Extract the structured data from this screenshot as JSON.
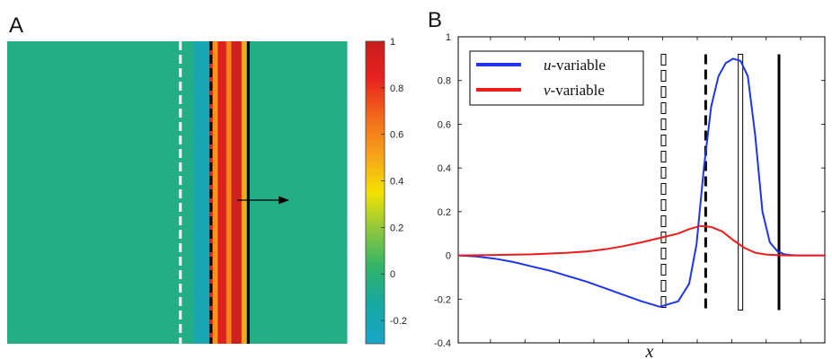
{
  "chart_data": [
    {
      "panel_label": "A",
      "type": "heatmap",
      "background_value": -0.05,
      "colorbar": {
        "range": [
          -0.3,
          1
        ],
        "ticks": [
          -0.2,
          0,
          0.2,
          0.4,
          0.6,
          0.8,
          1
        ],
        "tick_labels": [
          "-0.2",
          "0",
          "0.2",
          "0.4",
          "0.6",
          "0.8",
          "1"
        ],
        "colors": [
          "#1aa4c8",
          "#17a8a4",
          "#2fb36a",
          "#8cc63f",
          "#f2e200",
          "#f7a21a",
          "#f26a1b",
          "#e8231f",
          "#c81e1e"
        ]
      },
      "bands": [
        {
          "from": 0.0,
          "to": 0.55,
          "value": -0.05
        },
        {
          "from": 0.55,
          "to": 0.595,
          "value": -0.2
        },
        {
          "from": 0.595,
          "to": 0.605,
          "value": 0.9
        },
        {
          "from": 0.605,
          "to": 0.62,
          "value": 0.55
        },
        {
          "from": 0.62,
          "to": 0.645,
          "value": 0.9
        },
        {
          "from": 0.645,
          "to": 0.66,
          "value": 0.6
        },
        {
          "from": 0.66,
          "to": 0.69,
          "value": 0.95
        },
        {
          "from": 0.69,
          "to": 0.705,
          "value": 0.5
        },
        {
          "from": 0.705,
          "to": 0.72,
          "value": -0.05
        },
        {
          "from": 0.72,
          "to": 1.0,
          "value": -0.05
        }
      ],
      "markers": [
        {
          "position": 0.51,
          "style": "white-dashed"
        },
        {
          "position": 0.6,
          "style": "black-dashed"
        },
        {
          "position": 0.71,
          "style": "black-solid"
        }
      ],
      "arrow": {
        "direction": "right"
      }
    },
    {
      "panel_label": "B",
      "type": "line",
      "xlabel": "x",
      "ylabel": "",
      "xlim": [
        0,
        10
      ],
      "ylim": [
        -0.4,
        1
      ],
      "yticks": [
        -0.4,
        -0.2,
        0,
        0.2,
        0.4,
        0.6,
        0.8,
        1
      ],
      "ytick_labels": [
        "-0.4",
        "-0.2",
        "0",
        "0.2",
        "0.4",
        "0.6",
        "0.8",
        "1"
      ],
      "xticks": [
        0.88,
        1.82,
        2.76,
        3.7,
        4.64,
        5.58,
        6.52,
        7.46,
        8.4,
        9.34
      ],
      "legend": {
        "position": "top-left"
      },
      "series": [
        {
          "name_var": "u",
          "name_suffix": "-variable",
          "color": "#1f35ea",
          "x": [
            0,
            0.5,
            1,
            1.5,
            2,
            2.5,
            3,
            3.5,
            4,
            4.5,
            5,
            5.5,
            6,
            6.3,
            6.5,
            6.7,
            6.9,
            7.1,
            7.3,
            7.5,
            7.7,
            7.9,
            8.1,
            8.3,
            8.5,
            8.7,
            8.9,
            9.1,
            9.3,
            9.5,
            10
          ],
          "y": [
            0,
            -0.005,
            -0.015,
            -0.03,
            -0.05,
            -0.07,
            -0.095,
            -0.12,
            -0.15,
            -0.18,
            -0.21,
            -0.235,
            -0.21,
            -0.13,
            0.05,
            0.4,
            0.68,
            0.82,
            0.88,
            0.9,
            0.89,
            0.82,
            0.55,
            0.2,
            0.06,
            0.02,
            0.005,
            0.001,
            0,
            0,
            0
          ]
        },
        {
          "name_var": "v",
          "name_suffix": "-variable",
          "color": "#ee1c1c",
          "x": [
            0,
            1,
            2,
            3,
            3.5,
            4,
            4.5,
            5,
            5.5,
            6,
            6.3,
            6.6,
            6.9,
            7.2,
            7.5,
            7.8,
            8.1,
            8.4,
            8.7,
            9,
            9.5,
            10
          ],
          "y": [
            0,
            0.002,
            0.005,
            0.012,
            0.018,
            0.028,
            0.042,
            0.06,
            0.08,
            0.1,
            0.12,
            0.135,
            0.13,
            0.11,
            0.07,
            0.035,
            0.012,
            0.004,
            0.001,
            0,
            0,
            0
          ]
        }
      ],
      "vertical_lines": [
        {
          "x": 5.6,
          "style": "outlined-dashed",
          "ymin": -0.25,
          "ymax": 0.92
        },
        {
          "x": 6.75,
          "style": "black-dashed",
          "ymin": -0.25,
          "ymax": 0.92
        },
        {
          "x": 7.7,
          "style": "outlined-solid",
          "ymin": -0.25,
          "ymax": 0.92
        },
        {
          "x": 8.75,
          "style": "black-solid",
          "ymin": -0.25,
          "ymax": 0.92
        }
      ]
    }
  ]
}
